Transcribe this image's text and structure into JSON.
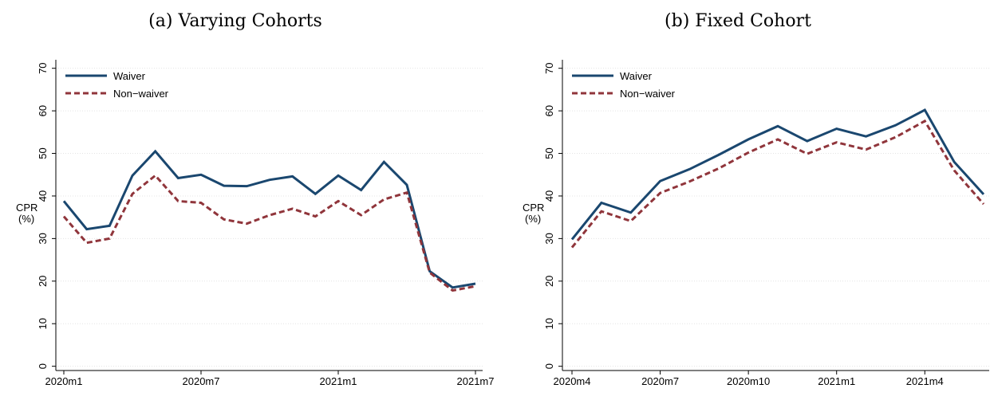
{
  "chart_data": [
    {
      "type": "line",
      "title": "(a)  Varying Cohorts",
      "ylabel": [
        "CPR",
        "(%)"
      ],
      "categories": [
        "2020m1",
        null,
        null,
        null,
        null,
        null,
        "2020m7",
        null,
        null,
        null,
        null,
        null,
        "2021m1",
        null,
        null,
        null,
        null,
        null,
        "2021m7"
      ],
      "series": [
        {
          "name": "Waiver",
          "color": "#1a476f",
          "dash": false,
          "values": [
            38.8,
            32.2,
            33.0,
            44.8,
            50.5,
            44.2,
            45.0,
            42.4,
            42.3,
            43.8,
            44.6,
            40.5,
            44.8,
            41.4,
            48.0,
            42.6,
            22.3,
            18.5,
            19.4
          ]
        },
        {
          "name": "Non−waiver",
          "color": "#90353b",
          "dash": true,
          "values": [
            35.2,
            29.0,
            30.0,
            40.5,
            44.8,
            38.8,
            38.4,
            34.5,
            33.5,
            35.5,
            37.0,
            35.2,
            38.8,
            35.5,
            39.2,
            40.8,
            22.0,
            17.8,
            18.8
          ]
        }
      ],
      "ylim": [
        -1,
        72
      ],
      "yticks": [
        0,
        10,
        20,
        30,
        40,
        50,
        60,
        70
      ],
      "grid": true,
      "legend": "top-left"
    },
    {
      "type": "line",
      "title": "(b)  Fixed Cohort",
      "ylabel": [
        "CPR",
        "(%)"
      ],
      "categories": [
        "2020m4",
        null,
        null,
        "2020m7",
        null,
        null,
        "2020m10",
        null,
        null,
        "2021m1",
        null,
        null,
        "2021m4",
        null,
        null
      ],
      "series": [
        {
          "name": "Waiver",
          "color": "#1a476f",
          "dash": false,
          "values": [
            29.8,
            38.4,
            36.1,
            43.5,
            46.3,
            49.7,
            53.3,
            56.4,
            52.9,
            55.8,
            54.0,
            56.6,
            60.2,
            48.0,
            40.4
          ]
        },
        {
          "name": "Non−waiver",
          "color": "#90353b",
          "dash": true,
          "values": [
            27.9,
            36.4,
            34.1,
            40.7,
            43.4,
            46.5,
            50.2,
            53.3,
            49.9,
            52.6,
            50.9,
            53.8,
            57.6,
            46.0,
            38.1
          ]
        }
      ],
      "ylim": [
        -1,
        72
      ],
      "yticks": [
        0,
        10,
        20,
        30,
        40,
        50,
        60,
        70
      ],
      "grid": true,
      "legend": "top-left"
    }
  ]
}
